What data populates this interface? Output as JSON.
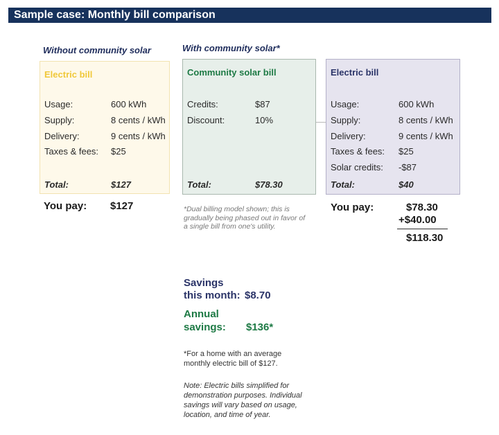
{
  "banner": {
    "title": "Sample case: Monthly bill comparison"
  },
  "without": {
    "heading": "Without community solar",
    "card_title": "Electric bill",
    "rows": [
      {
        "label": "Usage:",
        "value": "600 kWh"
      },
      {
        "label": "Supply:",
        "value": "8 cents / kWh"
      },
      {
        "label": "Delivery:",
        "value": "9 cents / kWh"
      },
      {
        "label": "Taxes & fees:",
        "value": "$25"
      }
    ],
    "total_label": "Total:",
    "total_value": "$127",
    "pay_label": "You pay:",
    "pay_value": "$127"
  },
  "with": {
    "heading": "With community solar*",
    "solar_card": {
      "title": "Community solar bill",
      "rows": [
        {
          "label": "Credits:",
          "value": "$87"
        },
        {
          "label": "Discount:",
          "value": "10%"
        }
      ],
      "total_label": "Total:",
      "total_value": "$78.30"
    },
    "electric_card": {
      "title": "Electric bill",
      "rows": [
        {
          "label": "Usage:",
          "value": "600 kWh"
        },
        {
          "label": "Supply:",
          "value": "8 cents / kWh"
        },
        {
          "label": "Delivery:",
          "value": "9 cents / kWh"
        },
        {
          "label": "Taxes & fees:",
          "value": "$25"
        },
        {
          "label": "Solar credits:",
          "value": "-$87"
        }
      ],
      "total_label": "Total:",
      "total_value": "$40"
    },
    "dual_note": "*Dual billing model shown; this is gradually being phased out in favor of a single bill from one's utility.",
    "pay_label": "You pay:",
    "pay_line1": "$78.30",
    "pay_line2": "+$40.00",
    "pay_sum": "$118.30"
  },
  "savings": {
    "month_label_1": "Savings",
    "month_label_2": "this month:",
    "month_value": "$8.70",
    "annual_label_1": "Annual",
    "annual_label_2": "savings:",
    "annual_value": "$136*"
  },
  "footnotes": {
    "home_note": "*For a home with an average monthly electric bill of $127.",
    "disclaimer": "Note: Electric bills simplified for demonstration purposes. Individual savings will vary based on usage, location, and time of year."
  },
  "colors": {
    "banner": "#17325c",
    "without_card_bg": "#fef9ea",
    "solar_card_bg": "#e7efea",
    "electric_card_bg": "#e6e4ef",
    "yellow_title": "#f0c83a",
    "green": "#1e7a45",
    "navy": "#2b3468"
  }
}
